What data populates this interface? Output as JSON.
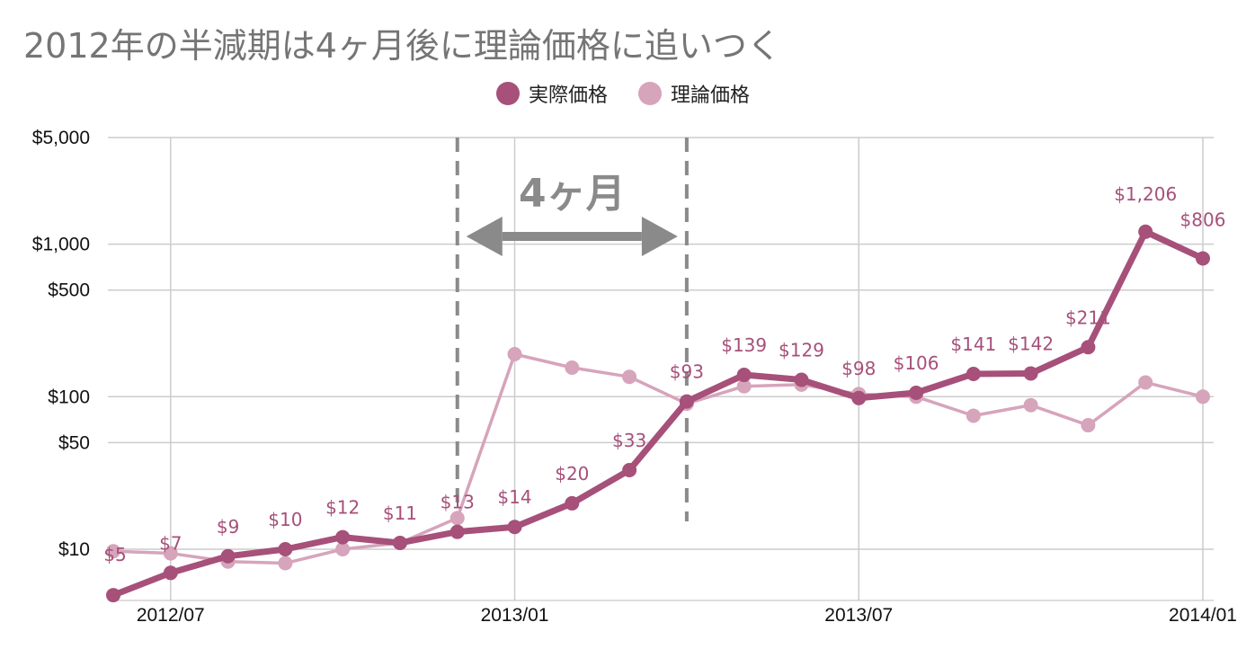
{
  "chart_data": {
    "type": "line",
    "title": "2012年の半減期は4ヶ月後に理論価格に追いつく",
    "yscale": "log",
    "ylim": [
      6,
      5000
    ],
    "y_ticks": [
      {
        "value": 10,
        "label": "$10"
      },
      {
        "value": 50,
        "label": "$50"
      },
      {
        "value": 100,
        "label": "$100"
      },
      {
        "value": 500,
        "label": "$500"
      },
      {
        "value": 1000,
        "label": "$1,000"
      },
      {
        "value": 5000,
        "label": "$5,000"
      }
    ],
    "x_ticks": [
      {
        "index": 1,
        "label": "2012/07"
      },
      {
        "index": 7,
        "label": "2013/01"
      },
      {
        "index": 13,
        "label": "2013/07"
      },
      {
        "index": 19,
        "label": "2014/01"
      }
    ],
    "legend_position": "top",
    "series": [
      {
        "name": "実際価格",
        "color": "#A6507A",
        "values": [
          5,
          7,
          9,
          10,
          12,
          11,
          13,
          14,
          20,
          33,
          93,
          139,
          129,
          98,
          106,
          141,
          142,
          211,
          1206,
          806
        ],
        "labels": [
          "$5",
          "$7",
          "$9",
          "$10",
          "$12",
          "$11",
          "$13",
          "$14",
          "$20",
          "$33",
          "$93",
          "$139",
          "$129",
          "$98",
          "$106",
          "$141",
          "$142",
          "$211",
          "$1,206",
          "$806"
        ]
      },
      {
        "name": "理論価格",
        "color": "#D6A4BB",
        "values": [
          9.7,
          9.4,
          8.3,
          8.1,
          10,
          11,
          16,
          190,
          155,
          135,
          90,
          117,
          120,
          104,
          100,
          75,
          88,
          65,
          124,
          100
        ]
      }
    ],
    "annotation": {
      "text": "4ヶ月",
      "from_index": 6,
      "to_index": 10,
      "color": "#8a8a8a"
    }
  }
}
